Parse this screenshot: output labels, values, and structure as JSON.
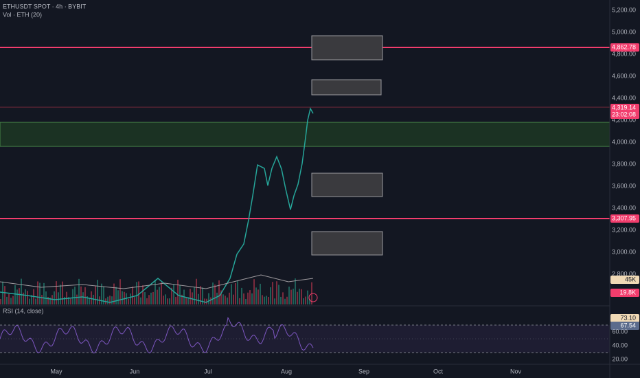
{
  "header": {
    "symbol": "ETHUSDT SPOT · 4h · BYBIT",
    "volume": "Vol · ETH (20)"
  },
  "price_axis": [
    "5,200.00",
    "5,000.00",
    "4,800.00",
    "4,600.00",
    "4,400.00",
    "4,200.00",
    "4,000.00",
    "3,800.00",
    "3,600.00",
    "3,400.00",
    "3,200.00",
    "3,000.00",
    "2,800.00"
  ],
  "badges": {
    "resistance": "4,862.78",
    "last_price": "4,319.14",
    "countdown": "23:02:08",
    "support": "3,307.95",
    "volume_avg": "45K",
    "volume": "19.8K"
  },
  "rsi": {
    "title": "RSI (14, close)",
    "rsi_ma": "73.10",
    "rsi_value": "67.54",
    "levels": [
      "60.00",
      "40.00",
      "20.00"
    ]
  },
  "time_axis": [
    "May",
    "Jun",
    "Jul",
    "Aug",
    "Sep",
    "Oct",
    "Nov"
  ]
}
